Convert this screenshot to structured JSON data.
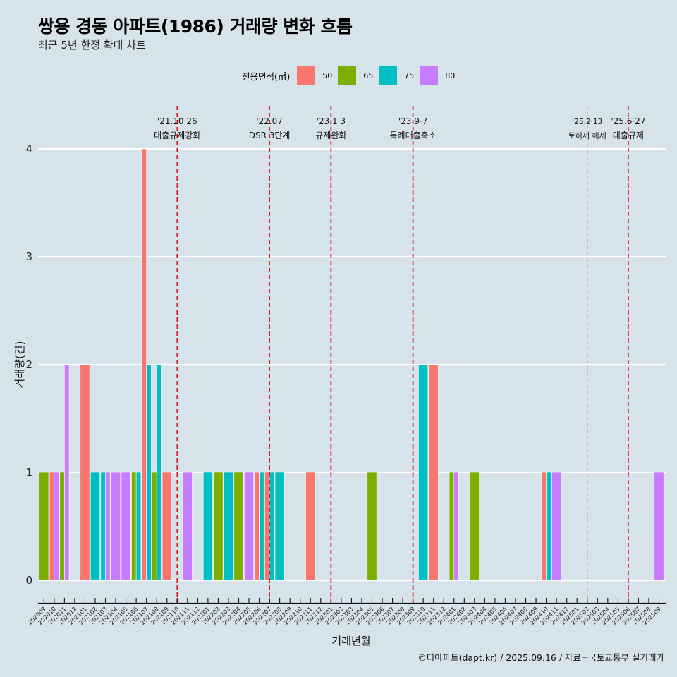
{
  "header": {
    "title": "쌍용 경동 아파트(1986) 거래량 변화 흐름",
    "subtitle": "최근 5년 한정 확대 차트"
  },
  "legend": {
    "title": "전용면적(㎡)",
    "items": [
      {
        "label": "50",
        "color": "#F8766D"
      },
      {
        "label": "65",
        "color": "#7CAE00"
      },
      {
        "label": "75",
        "color": "#00BFC4"
      },
      {
        "label": "80",
        "color": "#C77CFF"
      }
    ]
  },
  "caption": "©디아파트(dapt.kr) / 2025.09.16 / 자료=국토교통부 실거래가",
  "chart_data": {
    "type": "bar",
    "stacking": "dodge",
    "title": "쌍용 경동 아파트(1986) 거래량 변화 흐름",
    "subtitle": "최근 5년 한정 확대 차트",
    "xlabel": "거래년월",
    "ylabel": "거래량(건)",
    "ylim": [
      0,
      4
    ],
    "yticks": [
      0,
      1,
      2,
      3,
      4
    ],
    "grid": "horizontal",
    "legend_position": "top",
    "categories": [
      "202009",
      "202010",
      "202011",
      "202012",
      "202101",
      "202102",
      "202103",
      "202104",
      "202105",
      "202106",
      "202107",
      "202108",
      "202109",
      "202110",
      "202111",
      "202112",
      "202201",
      "202202",
      "202203",
      "202204",
      "202205",
      "202206",
      "202207",
      "202208",
      "202209",
      "202210",
      "202211",
      "202212",
      "202301",
      "202302",
      "202303",
      "202304",
      "202305",
      "202306",
      "202307",
      "202308",
      "202309",
      "202310",
      "202311",
      "202312",
      "202401",
      "202402",
      "202403",
      "202404",
      "202405",
      "202406",
      "202407",
      "202408",
      "202409",
      "202410",
      "202411",
      "202412",
      "202501",
      "202502",
      "202503",
      "202504",
      "202505",
      "202506",
      "202507",
      "202508",
      "202509"
    ],
    "series_names": [
      "50",
      "65",
      "75",
      "80"
    ],
    "series_colors": [
      "#F8766D",
      "#7CAE00",
      "#00BFC4",
      "#C77CFF"
    ],
    "records": [
      {
        "month": "202009",
        "size": "65",
        "count": 1
      },
      {
        "month": "202010",
        "size": "50",
        "count": 1
      },
      {
        "month": "202010",
        "size": "80",
        "count": 1
      },
      {
        "month": "202011",
        "size": "65",
        "count": 1
      },
      {
        "month": "202011",
        "size": "80",
        "count": 2
      },
      {
        "month": "202101",
        "size": "50",
        "count": 2
      },
      {
        "month": "202102",
        "size": "75",
        "count": 1
      },
      {
        "month": "202103",
        "size": "75",
        "count": 1
      },
      {
        "month": "202103",
        "size": "80",
        "count": 1
      },
      {
        "month": "202104",
        "size": "80",
        "count": 1
      },
      {
        "month": "202105",
        "size": "80",
        "count": 1
      },
      {
        "month": "202106",
        "size": "65",
        "count": 1
      },
      {
        "month": "202106",
        "size": "75",
        "count": 1
      },
      {
        "month": "202107",
        "size": "50",
        "count": 4
      },
      {
        "month": "202107",
        "size": "75",
        "count": 2
      },
      {
        "month": "202108",
        "size": "65",
        "count": 1
      },
      {
        "month": "202108",
        "size": "75",
        "count": 2
      },
      {
        "month": "202109",
        "size": "50",
        "count": 1
      },
      {
        "month": "202111",
        "size": "80",
        "count": 1
      },
      {
        "month": "202201",
        "size": "75",
        "count": 1
      },
      {
        "month": "202202",
        "size": "65",
        "count": 1
      },
      {
        "month": "202203",
        "size": "75",
        "count": 1
      },
      {
        "month": "202204",
        "size": "65",
        "count": 1
      },
      {
        "month": "202205",
        "size": "80",
        "count": 1
      },
      {
        "month": "202206",
        "size": "50",
        "count": 1
      },
      {
        "month": "202206",
        "size": "75",
        "count": 1
      },
      {
        "month": "202207",
        "size": "50",
        "count": 1
      },
      {
        "month": "202207",
        "size": "75",
        "count": 1
      },
      {
        "month": "202208",
        "size": "75",
        "count": 1
      },
      {
        "month": "202211",
        "size": "50",
        "count": 1
      },
      {
        "month": "202305",
        "size": "65",
        "count": 1
      },
      {
        "month": "202310",
        "size": "75",
        "count": 2
      },
      {
        "month": "202311",
        "size": "50",
        "count": 2
      },
      {
        "month": "202401",
        "size": "65",
        "count": 1
      },
      {
        "month": "202401",
        "size": "80",
        "count": 1
      },
      {
        "month": "202403",
        "size": "65",
        "count": 1
      },
      {
        "month": "202410",
        "size": "50",
        "count": 1
      },
      {
        "month": "202410",
        "size": "75",
        "count": 1
      },
      {
        "month": "202411",
        "size": "80",
        "count": 1
      },
      {
        "month": "202509",
        "size": "80",
        "count": 1
      }
    ],
    "annotations": [
      {
        "month": "202110",
        "date": "'21.10·26",
        "label": "대출규제강화",
        "style": "bold-dash"
      },
      {
        "month": "202207",
        "date": "'22.07",
        "label": "DSR 3단계",
        "style": "bold-dash"
      },
      {
        "month": "202301",
        "date": "'23.1·3",
        "label": "규제완화",
        "style": "bold-dash"
      },
      {
        "month": "202309",
        "date": "'23.9·7",
        "label": "특례대출축소",
        "style": "bold-dash"
      },
      {
        "month": "202502",
        "date": "'25.2·13",
        "label": "토허제 해제",
        "style": "thin-dash"
      },
      {
        "month": "202506",
        "date": "'25.6·27",
        "label": "대출규제",
        "style": "bold-dash"
      }
    ]
  }
}
